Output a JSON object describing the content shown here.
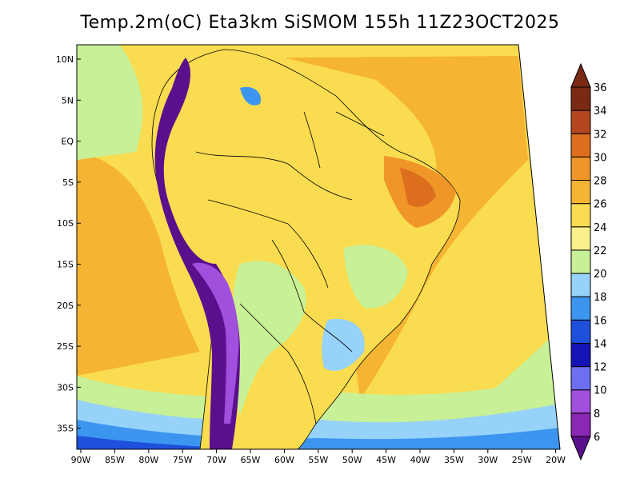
{
  "title": "Temp.2m(oC) Eta3km SiSMOM 155h 11Z23OCT2025",
  "colorbar": {
    "levels": [
      {
        "label": "6",
        "color": "#5a0f8c"
      },
      {
        "label": "8",
        "color": "#8a28b4"
      },
      {
        "label": "10",
        "color": "#a050dc"
      },
      {
        "label": "12",
        "color": "#6e6ef0"
      },
      {
        "label": "14",
        "color": "#1414b4"
      },
      {
        "label": "16",
        "color": "#1e50dc"
      },
      {
        "label": "18",
        "color": "#3c96f0"
      },
      {
        "label": "20",
        "color": "#96d2fa"
      },
      {
        "label": "22",
        "color": "#c8f096"
      },
      {
        "label": "24",
        "color": "#faf08c"
      },
      {
        "label": "26",
        "color": "#fadc50"
      },
      {
        "label": "28",
        "color": "#f5b432"
      },
      {
        "label": "30",
        "color": "#f09628"
      },
      {
        "label": "32",
        "color": "#dc6e1e"
      },
      {
        "label": "34",
        "color": "#b4461e"
      },
      {
        "label": "36",
        "color": "#7a2a14"
      }
    ]
  },
  "axes": {
    "lat_labels": [
      "10N",
      "5N",
      "EQ",
      "5S",
      "10S",
      "15S",
      "20S",
      "25S",
      "30S",
      "35S"
    ],
    "lon_labels": [
      "90W",
      "85W",
      "80W",
      "75W",
      "70W",
      "65W",
      "60W",
      "55W",
      "50W",
      "45W",
      "40W",
      "35W",
      "30W",
      "25W",
      "20W"
    ]
  },
  "colors": {
    "ocean_warm": "#f5b432",
    "ocean_mild": "#fadc50",
    "ocean_cool": "#c8f096",
    "land": "#fadc50",
    "andes": "#5a0f8c",
    "border": "#000000"
  }
}
